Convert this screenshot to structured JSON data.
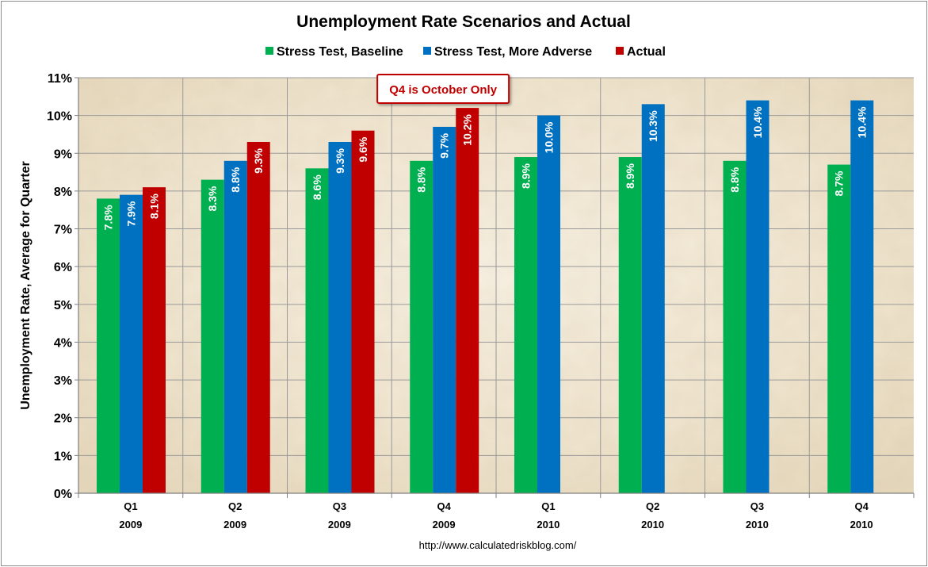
{
  "chart_data": {
    "type": "bar",
    "title": "Unemployment Rate Scenarios and Actual",
    "ylabel": "Unemployment Rate, Average for Quarter",
    "xlabel": "",
    "ylim": [
      0,
      11
    ],
    "y_ticks": [
      "0%",
      "1%",
      "2%",
      "3%",
      "4%",
      "5%",
      "6%",
      "7%",
      "8%",
      "9%",
      "10%",
      "11%"
    ],
    "grid": true,
    "legend_position": "top",
    "categories": [
      {
        "quarter": "Q1",
        "year": "2009"
      },
      {
        "quarter": "Q2",
        "year": "2009"
      },
      {
        "quarter": "Q3",
        "year": "2009"
      },
      {
        "quarter": "Q4",
        "year": "2009"
      },
      {
        "quarter": "Q1",
        "year": "2010"
      },
      {
        "quarter": "Q2",
        "year": "2010"
      },
      {
        "quarter": "Q3",
        "year": "2010"
      },
      {
        "quarter": "Q4",
        "year": "2010"
      }
    ],
    "series": [
      {
        "name": "Stress Test, Baseline",
        "color": "#00b050",
        "values": [
          7.8,
          8.3,
          8.6,
          8.8,
          8.9,
          8.9,
          8.8,
          8.7
        ],
        "labels": [
          "7.8%",
          "8.3%",
          "8.6%",
          "8.8%",
          "8.9%",
          "8.9%",
          "8.8%",
          "8.7%"
        ]
      },
      {
        "name": "Stress Test, More Adverse",
        "color": "#0070c0",
        "values": [
          7.9,
          8.8,
          9.3,
          9.7,
          10.0,
          10.3,
          10.4,
          10.4
        ],
        "labels": [
          "7.9%",
          "8.8%",
          "9.3%",
          "9.7%",
          "10.0%",
          "10.3%",
          "10.4%",
          "10.4%"
        ]
      },
      {
        "name": "Actual",
        "color": "#c00000",
        "values": [
          8.1,
          9.3,
          9.6,
          10.2,
          null,
          null,
          null,
          null
        ],
        "labels": [
          "8.1%",
          "9.3%",
          "9.6%",
          "10.2%",
          null,
          null,
          null,
          null
        ]
      }
    ],
    "annotation": {
      "text": "Q4 is October Only",
      "category_index": 3,
      "color": "#c00000"
    },
    "source": "http://www.calculatedriskblog.com/"
  }
}
